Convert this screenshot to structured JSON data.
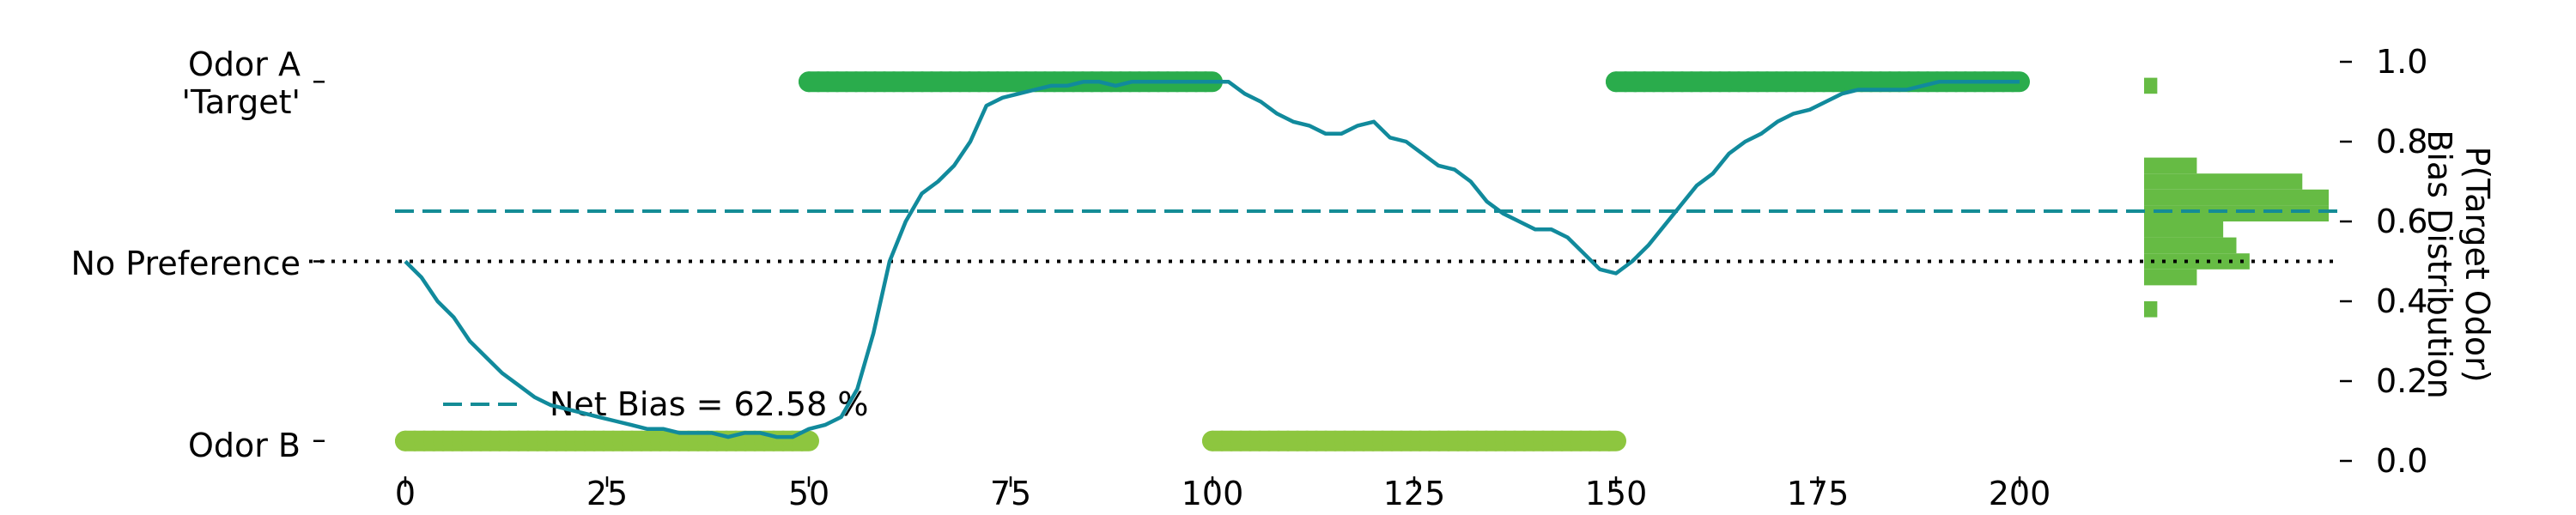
{
  "colors": {
    "target_odor": "#1aa060",
    "odor_b": "#8dc63f",
    "target_bar": "#2aac4c",
    "trace": "#118a9c",
    "hist": "#66bb44",
    "bias_line": "#148c96",
    "axis_label_p": "#118a9c",
    "axis_label_hist": "#7cbf3c"
  },
  "chart_data": {
    "type": "line",
    "x_range": [
      0,
      200
    ],
    "ylim": [
      0,
      1
    ],
    "left_labels": [
      {
        "text": "Odor A\n'Target'",
        "y": 0.95,
        "color": "target_odor"
      },
      {
        "text": "No Preference",
        "y": 0.5,
        "color": "black"
      },
      {
        "text": "Odor B",
        "y": 0.05,
        "color": "black"
      }
    ],
    "x_ticks": [
      "0",
      "25",
      "50",
      "75",
      "100",
      "125",
      "150",
      "175",
      "200"
    ],
    "x_tick_values": [
      0,
      25,
      50,
      75,
      100,
      125,
      150,
      175,
      200
    ],
    "y_ticks": [
      "0.0",
      "0.2",
      "0.4",
      "0.6",
      "0.8",
      "1.0"
    ],
    "y_tick_values": [
      0,
      0.2,
      0.4,
      0.6,
      0.8,
      1.0
    ],
    "ylabel_p": "P(Target Odor)",
    "ylabel_hist": "Bias Distribution",
    "legend": {
      "label": "Net Bias = 62.58 %",
      "position": "lower-left"
    },
    "net_bias": 0.6258,
    "no_preference": 0.5,
    "target_blocks": [
      [
        50,
        100
      ],
      [
        150,
        200
      ]
    ],
    "odor_b_blocks": [
      [
        0,
        50
      ],
      [
        100,
        150
      ]
    ],
    "target_marker_y": 0.95,
    "odor_b_marker_y": 0.05,
    "series": [
      {
        "x": [
          0,
          2,
          4,
          6,
          8,
          10,
          12,
          14,
          16,
          18,
          20,
          22,
          24,
          26,
          28,
          30,
          32,
          34,
          36,
          38,
          40,
          42,
          44,
          46,
          48,
          50,
          52,
          54,
          56,
          58,
          60,
          62,
          64,
          66,
          68,
          70,
          72,
          74,
          76,
          78,
          80,
          82,
          84,
          86,
          88,
          90,
          92,
          94,
          96,
          98,
          100,
          102,
          104,
          106,
          108,
          110,
          112,
          114,
          116,
          118,
          120,
          122,
          124,
          126,
          128,
          130,
          132,
          134,
          136,
          138,
          140,
          142,
          144,
          146,
          148,
          150,
          152,
          154,
          156,
          158,
          160,
          162,
          164,
          166,
          168,
          170,
          172,
          174,
          176,
          178,
          180,
          182,
          184,
          186,
          188,
          190,
          192,
          194,
          196,
          198,
          200
        ],
        "values": [
          0.5,
          0.46,
          0.4,
          0.36,
          0.3,
          0.26,
          0.22,
          0.19,
          0.16,
          0.14,
          0.13,
          0.12,
          0.11,
          0.1,
          0.09,
          0.08,
          0.08,
          0.07,
          0.07,
          0.07,
          0.06,
          0.07,
          0.07,
          0.06,
          0.06,
          0.08,
          0.09,
          0.11,
          0.18,
          0.32,
          0.5,
          0.6,
          0.67,
          0.7,
          0.74,
          0.8,
          0.89,
          0.91,
          0.92,
          0.93,
          0.94,
          0.94,
          0.95,
          0.95,
          0.94,
          0.95,
          0.95,
          0.95,
          0.95,
          0.95,
          0.95,
          0.95,
          0.92,
          0.9,
          0.87,
          0.85,
          0.84,
          0.82,
          0.82,
          0.84,
          0.85,
          0.81,
          0.8,
          0.77,
          0.74,
          0.73,
          0.7,
          0.65,
          0.62,
          0.6,
          0.58,
          0.58,
          0.56,
          0.52,
          0.48,
          0.47,
          0.5,
          0.54,
          0.59,
          0.64,
          0.69,
          0.72,
          0.77,
          0.8,
          0.82,
          0.85,
          0.87,
          0.88,
          0.9,
          0.92,
          0.93,
          0.93,
          0.93,
          0.93,
          0.94,
          0.95,
          0.95,
          0.95,
          0.95,
          0.95,
          0.95
        ]
      }
    ],
    "histogram": {
      "bins": [
        {
          "y0": 0.36,
          "y1": 0.4,
          "count": 1
        },
        {
          "y0": 0.4,
          "y1": 0.44,
          "count": 0
        },
        {
          "y0": 0.44,
          "y1": 0.48,
          "count": 4
        },
        {
          "y0": 0.48,
          "y1": 0.52,
          "count": 8
        },
        {
          "y0": 0.52,
          "y1": 0.56,
          "count": 7
        },
        {
          "y0": 0.56,
          "y1": 0.6,
          "count": 6
        },
        {
          "y0": 0.6,
          "y1": 0.64,
          "count": 14
        },
        {
          "y0": 0.64,
          "y1": 0.68,
          "count": 14
        },
        {
          "y0": 0.68,
          "y1": 0.72,
          "count": 12
        },
        {
          "y0": 0.72,
          "y1": 0.76,
          "count": 4
        },
        {
          "y0": 0.76,
          "y1": 0.8,
          "count": 0
        },
        {
          "y0": 0.8,
          "y1": 0.84,
          "count": 0
        },
        {
          "y0": 0.84,
          "y1": 0.88,
          "count": 0
        },
        {
          "y0": 0.88,
          "y1": 0.92,
          "count": 0
        },
        {
          "y0": 0.92,
          "y1": 0.96,
          "count": 1
        }
      ],
      "max_count": 14
    }
  }
}
